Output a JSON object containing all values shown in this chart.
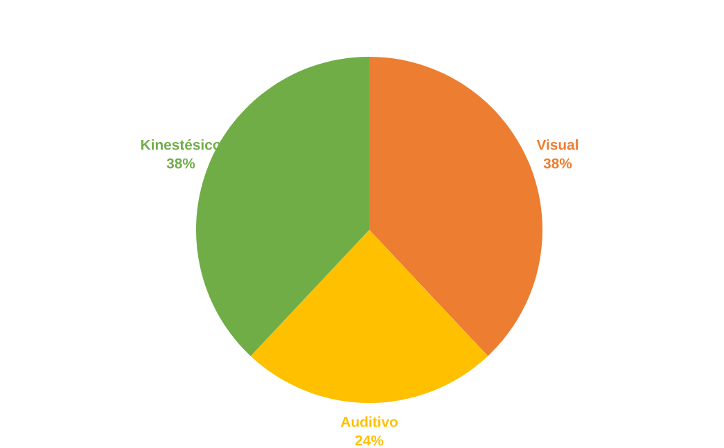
{
  "chart_data": {
    "type": "pie",
    "categories": [
      "Visual",
      "Auditivo",
      "Kinestésico"
    ],
    "values": [
      38,
      24,
      38
    ],
    "colors": [
      "#ed7d31",
      "#ffc000",
      "#70ad47"
    ],
    "value_labels": [
      "38%",
      "24%",
      "38%"
    ],
    "legend": false
  }
}
